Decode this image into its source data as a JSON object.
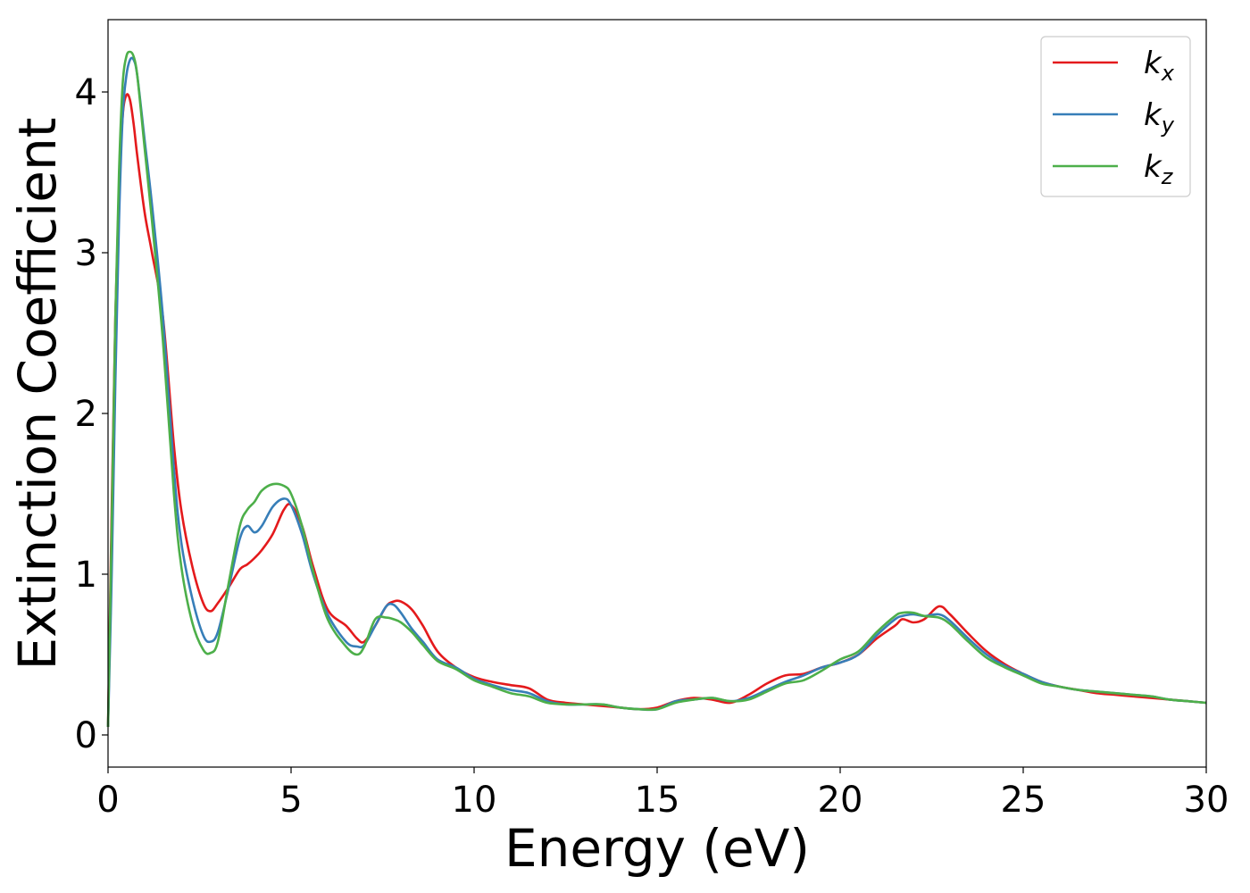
{
  "chart_data": {
    "type": "line",
    "xlabel": "Energy (eV)",
    "ylabel": "Extinction Coefficient",
    "xlim": [
      0,
      30
    ],
    "ylim": [
      -0.2,
      4.45
    ],
    "xticks": [
      "0",
      "5",
      "10",
      "15",
      "20",
      "25",
      "30"
    ],
    "yticks": [
      "0",
      "1",
      "2",
      "3",
      "4"
    ],
    "grid": false,
    "legend_position": "top-right",
    "series": [
      {
        "name": "k_x",
        "base": "k",
        "sub": "x",
        "color": "#e41a1c",
        "x": [
          0,
          0.1,
          0.2,
          0.3,
          0.4,
          0.5,
          0.6,
          0.7,
          0.8,
          1.0,
          1.2,
          1.5,
          1.8,
          2.0,
          2.3,
          2.6,
          2.8,
          3.0,
          3.3,
          3.6,
          3.8,
          4.0,
          4.2,
          4.5,
          4.8,
          5.0,
          5.3,
          5.6,
          6.0,
          6.5,
          6.8,
          7.0,
          7.3,
          7.6,
          7.8,
          8.0,
          8.3,
          8.6,
          9.0,
          9.5,
          10.0,
          10.5,
          11.0,
          11.5,
          12.0,
          12.5,
          13.0,
          13.5,
          14.0,
          14.5,
          15.0,
          15.5,
          16.0,
          16.5,
          17.0,
          17.5,
          18.0,
          18.5,
          19.0,
          19.5,
          20.0,
          20.5,
          21.0,
          21.5,
          21.7,
          22.0,
          22.3,
          22.7,
          23.0,
          23.5,
          24.0,
          24.5,
          25.0,
          25.5,
          26.0,
          26.5,
          27.0,
          27.5,
          28.0,
          28.5,
          29.0,
          29.5,
          30.0
        ],
        "y": [
          0.05,
          1.4,
          2.6,
          3.4,
          3.85,
          3.98,
          3.95,
          3.8,
          3.6,
          3.25,
          3.0,
          2.6,
          1.8,
          1.4,
          1.05,
          0.82,
          0.77,
          0.82,
          0.92,
          1.03,
          1.06,
          1.1,
          1.15,
          1.25,
          1.4,
          1.43,
          1.3,
          1.05,
          0.78,
          0.68,
          0.6,
          0.58,
          0.68,
          0.8,
          0.83,
          0.83,
          0.78,
          0.68,
          0.52,
          0.42,
          0.36,
          0.33,
          0.31,
          0.29,
          0.22,
          0.2,
          0.19,
          0.18,
          0.17,
          0.16,
          0.17,
          0.21,
          0.23,
          0.22,
          0.2,
          0.25,
          0.32,
          0.37,
          0.38,
          0.42,
          0.45,
          0.5,
          0.6,
          0.68,
          0.72,
          0.7,
          0.72,
          0.8,
          0.75,
          0.63,
          0.52,
          0.44,
          0.38,
          0.33,
          0.3,
          0.28,
          0.26,
          0.25,
          0.24,
          0.23,
          0.22,
          0.21,
          0.2
        ]
      },
      {
        "name": "k_y",
        "base": "k",
        "sub": "y",
        "color": "#377eb8",
        "x": [
          0,
          0.1,
          0.2,
          0.3,
          0.4,
          0.5,
          0.6,
          0.7,
          0.8,
          1.0,
          1.2,
          1.5,
          1.8,
          2.0,
          2.3,
          2.6,
          2.8,
          3.0,
          3.3,
          3.6,
          3.8,
          4.0,
          4.2,
          4.5,
          4.8,
          5.0,
          5.3,
          5.6,
          6.0,
          6.5,
          6.8,
          7.0,
          7.3,
          7.6,
          7.8,
          8.0,
          8.3,
          8.6,
          9.0,
          9.5,
          10.0,
          10.5,
          11.0,
          11.5,
          12.0,
          12.5,
          13.0,
          13.5,
          14.0,
          14.5,
          15.0,
          15.5,
          16.0,
          16.5,
          17.0,
          17.5,
          18.0,
          18.5,
          19.0,
          19.5,
          20.0,
          20.5,
          21.0,
          21.5,
          21.7,
          22.0,
          22.3,
          22.7,
          23.0,
          23.5,
          24.0,
          24.5,
          25.0,
          25.5,
          26.0,
          26.5,
          27.0,
          27.5,
          28.0,
          28.5,
          29.0,
          29.5,
          30.0
        ],
        "y": [
          0.05,
          1.0,
          2.2,
          3.2,
          3.85,
          4.1,
          4.2,
          4.2,
          4.1,
          3.7,
          3.3,
          2.6,
          1.65,
          1.2,
          0.85,
          0.62,
          0.58,
          0.64,
          0.92,
          1.22,
          1.3,
          1.26,
          1.3,
          1.42,
          1.47,
          1.43,
          1.25,
          1.0,
          0.75,
          0.58,
          0.55,
          0.56,
          0.68,
          0.8,
          0.81,
          0.76,
          0.66,
          0.58,
          0.47,
          0.42,
          0.35,
          0.31,
          0.28,
          0.26,
          0.21,
          0.19,
          0.19,
          0.19,
          0.17,
          0.16,
          0.16,
          0.21,
          0.22,
          0.23,
          0.21,
          0.23,
          0.28,
          0.33,
          0.37,
          0.42,
          0.45,
          0.5,
          0.62,
          0.72,
          0.74,
          0.75,
          0.74,
          0.75,
          0.71,
          0.6,
          0.5,
          0.43,
          0.38,
          0.33,
          0.3,
          0.28,
          0.27,
          0.26,
          0.25,
          0.24,
          0.22,
          0.21,
          0.2
        ]
      },
      {
        "name": "k_z",
        "base": "k",
        "sub": "z",
        "color": "#4daf4a",
        "x": [
          0,
          0.1,
          0.2,
          0.3,
          0.4,
          0.5,
          0.6,
          0.7,
          0.8,
          1.0,
          1.2,
          1.5,
          1.8,
          2.0,
          2.3,
          2.6,
          2.8,
          3.0,
          3.3,
          3.6,
          3.8,
          4.0,
          4.2,
          4.5,
          4.8,
          5.0,
          5.3,
          5.6,
          6.0,
          6.5,
          6.8,
          7.0,
          7.3,
          7.6,
          7.8,
          8.0,
          8.3,
          8.6,
          9.0,
          9.5,
          10.0,
          10.5,
          11.0,
          11.5,
          12.0,
          12.5,
          13.0,
          13.5,
          14.0,
          14.5,
          15.0,
          15.5,
          16.0,
          16.5,
          17.0,
          17.5,
          18.0,
          18.5,
          19.0,
          19.5,
          20.0,
          20.5,
          21.0,
          21.5,
          21.7,
          22.0,
          22.3,
          22.7,
          23.0,
          23.5,
          24.0,
          24.5,
          25.0,
          25.5,
          26.0,
          26.5,
          27.0,
          27.5,
          28.0,
          28.5,
          29.0,
          29.5,
          30.0
        ],
        "y": [
          0.05,
          1.3,
          2.6,
          3.5,
          4.05,
          4.22,
          4.25,
          4.22,
          4.1,
          3.65,
          3.2,
          2.45,
          1.5,
          1.05,
          0.7,
          0.53,
          0.51,
          0.58,
          0.95,
          1.3,
          1.4,
          1.45,
          1.52,
          1.56,
          1.55,
          1.5,
          1.3,
          1.02,
          0.72,
          0.55,
          0.5,
          0.55,
          0.72,
          0.73,
          0.72,
          0.7,
          0.64,
          0.56,
          0.46,
          0.41,
          0.34,
          0.3,
          0.26,
          0.24,
          0.2,
          0.19,
          0.19,
          0.19,
          0.17,
          0.16,
          0.16,
          0.2,
          0.22,
          0.23,
          0.21,
          0.22,
          0.27,
          0.32,
          0.34,
          0.4,
          0.47,
          0.52,
          0.64,
          0.74,
          0.76,
          0.76,
          0.74,
          0.73,
          0.69,
          0.58,
          0.48,
          0.42,
          0.37,
          0.32,
          0.3,
          0.28,
          0.27,
          0.26,
          0.25,
          0.24,
          0.22,
          0.21,
          0.2
        ]
      }
    ]
  }
}
